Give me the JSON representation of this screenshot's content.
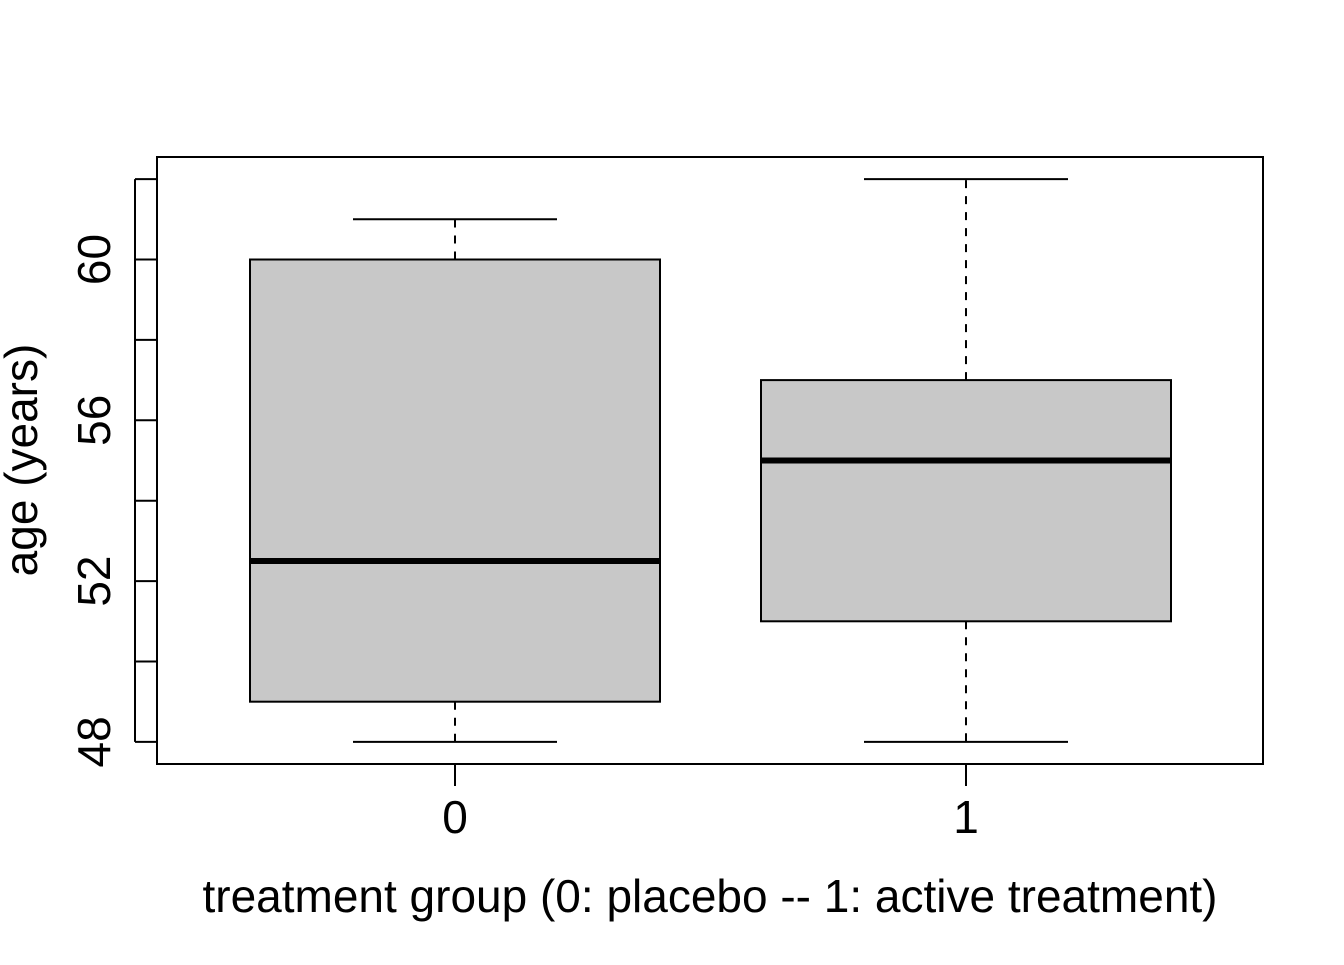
{
  "chart_data": {
    "type": "box",
    "title": "",
    "xlabel": "treatment group (0: placebo -- 1: active treatment)",
    "ylabel": "age (years)",
    "ylim": [
      47.45,
      62.55
    ],
    "y_ticks": [
      48,
      50,
      52,
      54,
      56,
      58,
      60,
      62
    ],
    "y_tick_labels": [
      "48",
      "",
      "52",
      "",
      "56",
      "",
      "60",
      ""
    ],
    "categories": [
      "0",
      "1"
    ],
    "boxes": [
      {
        "category": "0",
        "whisker_low": 48,
        "q1": 49,
        "median": 52.5,
        "q3": 60,
        "whisker_high": 61
      },
      {
        "category": "1",
        "whisker_low": 48,
        "q1": 51,
        "median": 55,
        "q3": 57,
        "whisker_high": 62
      }
    ],
    "grid": false,
    "box_color": "#c8c8c8",
    "line_color": "#000000"
  }
}
